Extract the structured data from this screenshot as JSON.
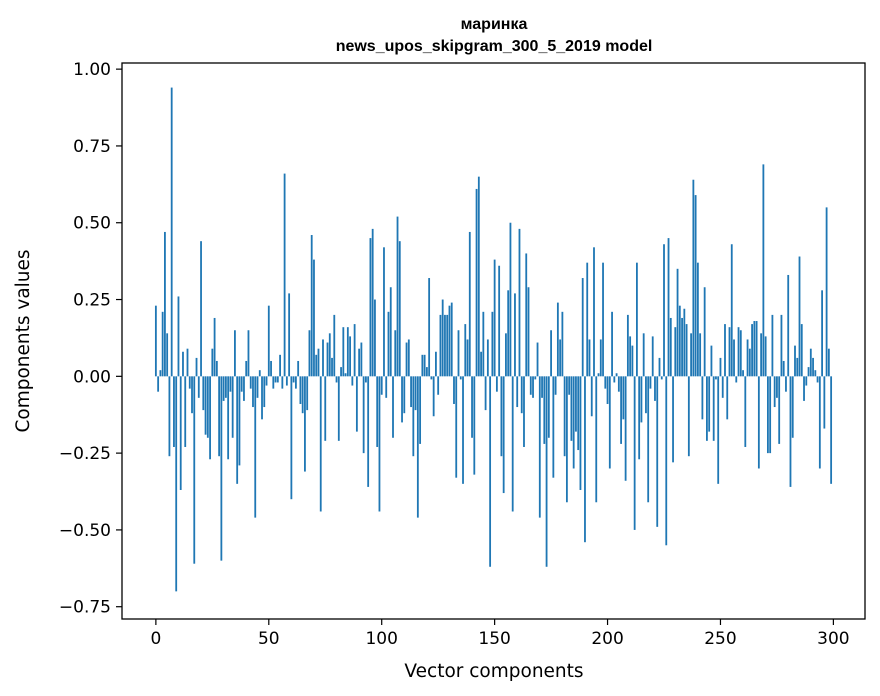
{
  "chart_data": {
    "type": "bar",
    "title_lines": [
      "маринка",
      "news_upos_skipgram_300_5_2019 model"
    ],
    "xlabel": "Vector components",
    "ylabel": "Components values",
    "xlim": [
      -15,
      314
    ],
    "ylim": [
      -0.79,
      1.02
    ],
    "xticks": [
      0,
      50,
      100,
      150,
      200,
      250,
      300
    ],
    "yticks": [
      -0.75,
      -0.5,
      -0.25,
      0.0,
      0.25,
      0.5,
      0.75,
      1.0
    ],
    "ytick_labels": [
      "−0.75",
      "−0.50",
      "−0.25",
      "0.00",
      "0.25",
      "0.50",
      "0.75",
      "1.00"
    ],
    "bar_color": "#1f77b4",
    "values": [
      0.23,
      -0.05,
      0.02,
      0.21,
      0.47,
      0.14,
      -0.26,
      0.94,
      -0.23,
      -0.7,
      0.26,
      -0.37,
      0.08,
      -0.23,
      0.09,
      -0.04,
      -0.12,
      -0.61,
      0.06,
      -0.07,
      0.44,
      -0.11,
      -0.19,
      -0.2,
      -0.27,
      0.09,
      0.19,
      0.05,
      -0.26,
      -0.6,
      -0.08,
      -0.07,
      -0.27,
      -0.05,
      -0.2,
      0.15,
      -0.35,
      -0.29,
      -0.05,
      -0.08,
      0.05,
      0.15,
      -0.04,
      -0.1,
      -0.46,
      -0.07,
      0.02,
      -0.14,
      -0.1,
      -0.03,
      0.23,
      0.05,
      -0.04,
      -0.02,
      -0.02,
      0.07,
      -0.04,
      0.66,
      -0.03,
      0.27,
      -0.4,
      -0.02,
      -0.04,
      0.05,
      -0.09,
      -0.12,
      -0.31,
      -0.11,
      0.15,
      0.46,
      0.38,
      0.07,
      0.09,
      -0.44,
      0.12,
      -0.21,
      0.11,
      0.14,
      0.06,
      0.2,
      -0.02,
      -0.21,
      0.03,
      0.16,
      0.01,
      0.16,
      0.13,
      -0.03,
      0.17,
      -0.18,
      0.09,
      0.11,
      -0.25,
      -0.02,
      -0.36,
      0.45,
      0.48,
      0.25,
      -0.23,
      -0.44,
      -0.06,
      0.42,
      -0.07,
      0.21,
      0.29,
      -0.2,
      0.15,
      0.52,
      0.44,
      -0.15,
      -0.12,
      0.11,
      0.12,
      -0.1,
      -0.26,
      -0.11,
      -0.46,
      -0.22,
      0.07,
      0.07,
      0.03,
      0.32,
      -0.01,
      -0.13,
      0.08,
      -0.06,
      0.2,
      0.25,
      0.2,
      0.2,
      0.23,
      0.24,
      -0.09,
      -0.33,
      0.15,
      -0.01,
      -0.35,
      0.17,
      0.12,
      0.47,
      -0.2,
      -0.32,
      0.61,
      0.65,
      0.08,
      0.21,
      -0.11,
      0.12,
      -0.62,
      0.21,
      0.38,
      -0.05,
      0.36,
      -0.26,
      -0.38,
      0.14,
      0.28,
      0.5,
      -0.44,
      0.27,
      -0.1,
      0.48,
      -0.12,
      -0.23,
      0.4,
      0.29,
      -0.06,
      -0.07,
      -0.01,
      0.11,
      -0.46,
      -0.07,
      -0.22,
      -0.62,
      -0.2,
      0.15,
      -0.33,
      -0.06,
      0.24,
      0.12,
      0.21,
      -0.26,
      -0.41,
      -0.06,
      -0.21,
      -0.3,
      -0.18,
      -0.24,
      -0.37,
      0.32,
      -0.54,
      0.37,
      0.12,
      -0.13,
      0.42,
      -0.41,
      0.01,
      0.12,
      0.37,
      -0.04,
      -0.09,
      -0.3,
      0.21,
      -0.02,
      0.01,
      -0.05,
      -0.22,
      -0.14,
      -0.34,
      0.2,
      0.13,
      0.1,
      -0.5,
      0.37,
      -0.27,
      -0.15,
      0.14,
      -0.12,
      -0.41,
      -0.04,
      0.13,
      -0.08,
      -0.49,
      0.06,
      -0.01,
      0.43,
      -0.55,
      0.45,
      0.19,
      -0.28,
      0.16,
      0.35,
      0.23,
      0.19,
      0.22,
      0.17,
      -0.26,
      0.14,
      0.64,
      0.59,
      0.37,
      0.14,
      -0.14,
      0.29,
      -0.21,
      -0.18,
      0.1,
      -0.21,
      -0.01,
      -0.35,
      0.06,
      -0.07,
      0.17,
      -0.14,
      0.16,
      0.43,
      0.12,
      -0.02,
      0.16,
      0.15,
      0.02,
      -0.23,
      0.12,
      0.09,
      0.17,
      0.18,
      0.18,
      -0.3,
      0.14,
      0.69,
      0.13,
      -0.25,
      -0.25,
      0.2,
      -0.1,
      -0.07,
      -0.22,
      0.2,
      0.05,
      -0.05,
      0.33,
      -0.36,
      -0.2,
      0.1,
      0.06,
      0.39,
      0.17,
      -0.08,
      -0.03,
      0.03,
      0.09,
      0.06,
      0.02,
      -0.02,
      -0.3,
      0.28,
      -0.17,
      0.55,
      0.09,
      -0.35
    ]
  }
}
